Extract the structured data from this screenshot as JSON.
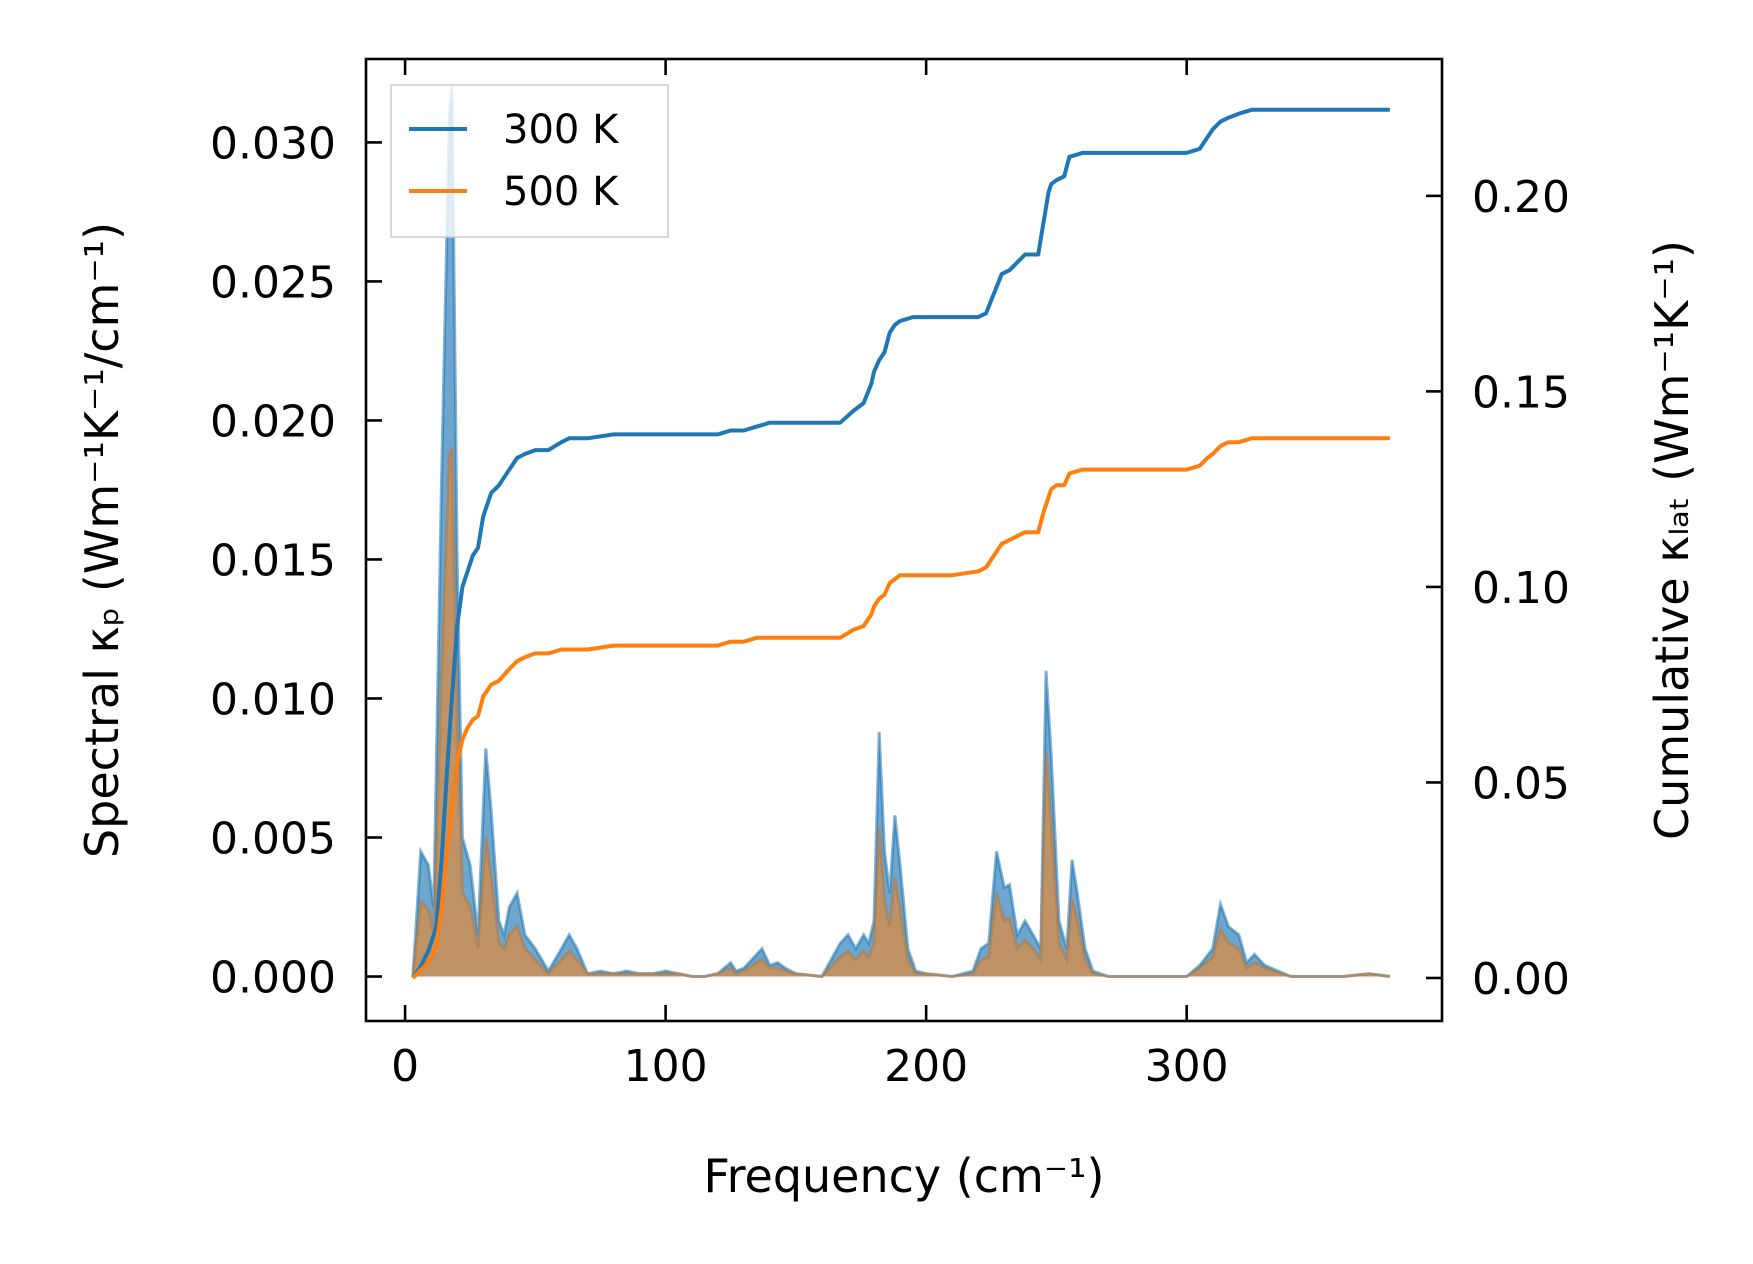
{
  "chart_data": {
    "type": "line",
    "title": "",
    "xlabel": "Frequency (cm⁻¹)",
    "ylabel_left": "Spectral κₚ (Wm⁻¹K⁻¹/cm⁻¹)",
    "ylabel_right": "Cumulative κₗₐₜ (Wm⁻¹K⁻¹)",
    "xlim": [
      -15,
      398
    ],
    "ylim_left": [
      -0.0016,
      0.033
    ],
    "ylim_right": [
      -0.011,
      0.235
    ],
    "xticks": [
      0,
      100,
      200,
      300
    ],
    "xtick_labels": [
      "0",
      "100",
      "200",
      "300"
    ],
    "yticks_left": [
      0,
      0.005,
      0.01,
      0.015,
      0.02,
      0.025,
      0.03
    ],
    "ytick_labels_left": [
      "0.000",
      "0.005",
      "0.010",
      "0.015",
      "0.020",
      "0.025",
      "0.030"
    ],
    "yticks_right": [
      0,
      0.05,
      0.1,
      0.15,
      0.2
    ],
    "ytick_labels_right": [
      "0.00",
      "0.05",
      "0.10",
      "0.15",
      "0.20"
    ],
    "grid": false,
    "legend": {
      "position": "top-left"
    },
    "colors": {
      "s300": "#1f77b4",
      "s500": "#ff7f0e",
      "fill500": "#c8915a"
    },
    "spectral": {
      "axis": "left",
      "x": [
        3,
        6,
        9,
        11,
        14,
        17,
        18,
        20,
        22,
        25,
        28,
        31,
        33,
        36,
        38,
        40,
        43,
        46,
        50,
        55,
        60,
        63,
        66,
        70,
        75,
        80,
        85,
        90,
        95,
        100,
        105,
        110,
        115,
        120,
        125,
        127,
        130,
        135,
        137,
        140,
        143,
        146,
        150,
        160,
        167,
        170,
        173,
        176,
        178,
        180,
        182,
        184,
        186,
        188,
        190,
        193,
        196,
        200,
        210,
        218,
        221,
        224,
        227,
        230,
        232,
        235,
        238,
        241,
        244,
        246,
        248,
        251,
        254,
        256,
        258,
        261,
        264,
        270,
        280,
        290,
        300,
        305,
        310,
        313,
        316,
        320,
        323,
        326,
        330,
        340,
        350,
        360,
        370,
        378
      ],
      "series": [
        {
          "name": "300 K",
          "values": [
            0.0,
            0.0045,
            0.004,
            0.0025,
            0.018,
            0.031,
            0.032,
            0.015,
            0.005,
            0.004,
            0.0015,
            0.0082,
            0.006,
            0.002,
            0.0015,
            0.0025,
            0.003,
            0.0015,
            0.001,
            0.0002,
            0.001,
            0.0015,
            0.001,
            0.0001,
            0.0002,
            0.0001,
            0.0002,
            0.0001,
            0.0001,
            0.0002,
            0.0001,
            0.0,
            0.0,
            0.0001,
            0.0005,
            0.0002,
            0.0003,
            0.0008,
            0.001,
            0.0004,
            0.0005,
            0.0003,
            0.0001,
            0.0,
            0.0012,
            0.0015,
            0.001,
            0.0015,
            0.0012,
            0.002,
            0.0088,
            0.0045,
            0.003,
            0.0058,
            0.004,
            0.001,
            0.0002,
            0.0001,
            0.0,
            0.0002,
            0.001,
            0.0012,
            0.0045,
            0.0032,
            0.0033,
            0.0015,
            0.002,
            0.0015,
            0.001,
            0.011,
            0.008,
            0.002,
            0.001,
            0.0042,
            0.003,
            0.001,
            0.0002,
            0.0,
            0.0,
            0.0,
            0.0,
            0.0004,
            0.001,
            0.0026,
            0.0018,
            0.0015,
            0.0005,
            0.0008,
            0.0004,
            0.0,
            0.0,
            0.0,
            0.0001,
            0.0
          ]
        },
        {
          "name": "500 K",
          "values": [
            0.0,
            0.0027,
            0.0024,
            0.0015,
            0.011,
            0.0188,
            0.019,
            0.009,
            0.003,
            0.0025,
            0.001,
            0.005,
            0.0036,
            0.0012,
            0.001,
            0.0015,
            0.0018,
            0.001,
            0.0006,
            0.0001,
            0.0006,
            0.0009,
            0.0006,
            0.0001,
            0.0001,
            0.0001,
            0.0001,
            0.0001,
            0.0001,
            0.0001,
            0.0001,
            0.0,
            0.0,
            0.0001,
            0.0003,
            0.0001,
            0.0002,
            0.0005,
            0.0006,
            0.0003,
            0.0003,
            0.0002,
            0.0001,
            0.0,
            0.0007,
            0.0009,
            0.0006,
            0.0009,
            0.0007,
            0.0012,
            0.0054,
            0.0027,
            0.0018,
            0.0036,
            0.0024,
            0.0006,
            0.0001,
            0.0001,
            0.0,
            0.0001,
            0.0006,
            0.0007,
            0.003,
            0.002,
            0.0021,
            0.001,
            0.0013,
            0.001,
            0.0006,
            0.0081,
            0.0055,
            0.0012,
            0.0006,
            0.0028,
            0.002,
            0.0006,
            0.0001,
            0.0,
            0.0,
            0.0,
            0.0,
            0.0003,
            0.0007,
            0.0017,
            0.0012,
            0.001,
            0.0003,
            0.0005,
            0.0003,
            0.0,
            0.0,
            0.0,
            0.0001,
            0.0
          ]
        }
      ]
    },
    "cumulative": {
      "axis": "right",
      "x": [
        3,
        6,
        9,
        12,
        14,
        16,
        18,
        20,
        22,
        24,
        26,
        28,
        30,
        33,
        36,
        40,
        43,
        46,
        50,
        55,
        60,
        63,
        65,
        70,
        80,
        90,
        100,
        110,
        120,
        125,
        130,
        135,
        140,
        145,
        150,
        160,
        167,
        172,
        176,
        179,
        180,
        182,
        184,
        186,
        188,
        190,
        195,
        200,
        210,
        220,
        223,
        226,
        229,
        232,
        235,
        238,
        240,
        243,
        245,
        246,
        247,
        248,
        250,
        253,
        255,
        260,
        270,
        280,
        290,
        300,
        305,
        308,
        310,
        313,
        316,
        320,
        325,
        330,
        340,
        350,
        360,
        370,
        378
      ],
      "series": [
        {
          "name": "300 K",
          "values": [
            0.0,
            0.003,
            0.007,
            0.013,
            0.03,
            0.052,
            0.072,
            0.09,
            0.1,
            0.104,
            0.108,
            0.11,
            0.118,
            0.124,
            0.126,
            0.13,
            0.133,
            0.134,
            0.135,
            0.135,
            0.137,
            0.138,
            0.138,
            0.138,
            0.139,
            0.139,
            0.139,
            0.139,
            0.139,
            0.14,
            0.14,
            0.141,
            0.142,
            0.142,
            0.142,
            0.142,
            0.142,
            0.145,
            0.147,
            0.152,
            0.155,
            0.158,
            0.16,
            0.165,
            0.167,
            0.168,
            0.169,
            0.169,
            0.169,
            0.169,
            0.17,
            0.175,
            0.18,
            0.181,
            0.183,
            0.185,
            0.185,
            0.185,
            0.193,
            0.197,
            0.201,
            0.203,
            0.204,
            0.205,
            0.21,
            0.211,
            0.211,
            0.211,
            0.211,
            0.211,
            0.212,
            0.215,
            0.217,
            0.219,
            0.22,
            0.221,
            0.222,
            0.222,
            0.222,
            0.222,
            0.222,
            0.222,
            0.222
          ]
        },
        {
          "name": "500 K",
          "values": [
            0.0,
            0.002,
            0.004,
            0.008,
            0.018,
            0.032,
            0.044,
            0.055,
            0.061,
            0.064,
            0.066,
            0.067,
            0.072,
            0.075,
            0.076,
            0.079,
            0.081,
            0.082,
            0.083,
            0.083,
            0.084,
            0.084,
            0.084,
            0.084,
            0.085,
            0.085,
            0.085,
            0.085,
            0.085,
            0.086,
            0.086,
            0.087,
            0.087,
            0.087,
            0.087,
            0.087,
            0.087,
            0.089,
            0.09,
            0.093,
            0.095,
            0.097,
            0.098,
            0.101,
            0.102,
            0.103,
            0.103,
            0.103,
            0.103,
            0.104,
            0.105,
            0.108,
            0.111,
            0.112,
            0.113,
            0.114,
            0.114,
            0.114,
            0.119,
            0.121,
            0.123,
            0.125,
            0.126,
            0.126,
            0.129,
            0.13,
            0.13,
            0.13,
            0.13,
            0.13,
            0.131,
            0.133,
            0.134,
            0.136,
            0.137,
            0.137,
            0.138,
            0.138,
            0.138,
            0.138,
            0.138,
            0.138,
            0.138
          ]
        }
      ]
    }
  }
}
